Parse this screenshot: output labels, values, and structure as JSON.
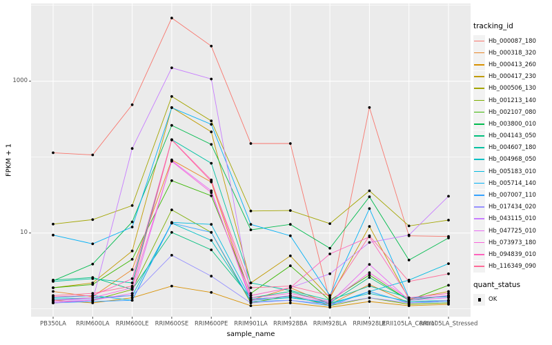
{
  "figure": {
    "background": "#FFFFFF",
    "panel_background": "#EBEBEB",
    "gridline_color": "#FFFFFF",
    "tick_color": "#333333",
    "tick_label_color": "#4D4D4D",
    "axis_title_color": "#000000",
    "point_color": "#000000"
  },
  "legend": {
    "tracking_title": "tracking_id",
    "quant_title": "quant_status",
    "quant_items": [
      {
        "label": "OK",
        "shape": "black-square"
      }
    ],
    "key_background": "#F2F2F2"
  },
  "chart_data": {
    "type": "line",
    "title": "",
    "xlabel": "sample_name",
    "ylabel": "FPKM + 1",
    "y_scale": "log10",
    "ylim": [
      0.9,
      9000
    ],
    "grid": "on",
    "legend_position": "right",
    "y_ticks": [
      {
        "value": 10,
        "label": "10"
      },
      {
        "value": 1000,
        "label": "1000"
      }
    ],
    "y_minor_gridlines": [
      1,
      100,
      10000
    ],
    "y_major_gridlines": [
      10,
      1000
    ],
    "categories": [
      "PB350LA",
      "RRIM600LA",
      "RRIM600LE",
      "RRIM600SE",
      "RRIM600PE",
      "RRIM901LA",
      "RRIM928BA",
      "RRIM928LA",
      "RRIM928LE",
      "RRII105LA_Control",
      "RRII105LA_Stressed"
    ],
    "series": [
      {
        "name": "Hb_000087_180",
        "color": "#F8766D",
        "values": [
          114,
          107,
          490,
          6800,
          2900,
          151,
          151,
          1.25,
          450,
          9.2,
          9.0
        ]
      },
      {
        "name": "Hb_000318_320",
        "color": "#E88526",
        "values": [
          1.7,
          1.45,
          3.3,
          92,
          47,
          1.3,
          1.9,
          1.15,
          2.1,
          1.2,
          1.3
        ]
      },
      {
        "name": "Hb_000413_260",
        "color": "#D89000",
        "values": [
          1.3,
          1.2,
          1.4,
          2.0,
          1.65,
          1.1,
          1.2,
          1.05,
          1.25,
          1.1,
          1.15
        ]
      },
      {
        "name": "Hb_000417_230",
        "color": "#C09B00",
        "values": [
          1.9,
          2.2,
          5.8,
          450,
          215,
          2.2,
          5.0,
          1.4,
          12.2,
          1.35,
          1.7
        ]
      },
      {
        "name": "Hb_000506_130",
        "color": "#A3A500",
        "values": [
          13.1,
          15,
          23,
          630,
          300,
          19.5,
          19.8,
          13.3,
          36,
          12.4,
          14.8
        ]
      },
      {
        "name": "Hb_001213_140",
        "color": "#7CAE00",
        "values": [
          1.2,
          1.3,
          1.8,
          20.2,
          10.2,
          1.2,
          1.5,
          1.1,
          1.4,
          1.15,
          1.2
        ]
      },
      {
        "name": "Hb_002107_080",
        "color": "#39B600",
        "values": [
          1.9,
          2.1,
          4.5,
          49,
          31,
          1.6,
          3.7,
          1.3,
          2.8,
          1.3,
          2.05
        ]
      },
      {
        "name": "Hb_003800_010",
        "color": "#00BB4E",
        "values": [
          2.35,
          3.9,
          14,
          262,
          147,
          11,
          13,
          6.3,
          30,
          4.4,
          8.6
        ]
      },
      {
        "name": "Hb_004143_050",
        "color": "#00BF7D",
        "values": [
          2.4,
          2.6,
          1.8,
          10.2,
          6.0,
          1.4,
          1.7,
          1.2,
          2.6,
          1.3,
          1.5
        ]
      },
      {
        "name": "Hb_004607_180",
        "color": "#00C1A3",
        "values": [
          2.3,
          2.5,
          2.2,
          170,
          83,
          2.2,
          1.75,
          1.3,
          2.0,
          1.4,
          1.45
        ]
      },
      {
        "name": "Hb_004968_050",
        "color": "#00BFC4",
        "values": [
          1.35,
          1.4,
          1.5,
          13.5,
          8.0,
          1.3,
          1.4,
          1.2,
          1.6,
          1.25,
          1.3
        ]
      },
      {
        "name": "Hb_005183_010",
        "color": "#00BAE0",
        "values": [
          1.4,
          1.5,
          1.3,
          13.8,
          13,
          1.35,
          1.45,
          1.15,
          1.7,
          2.4,
          3.95
        ]
      },
      {
        "name": "Hb_005714_140",
        "color": "#00B0F6",
        "values": [
          9.4,
          7.2,
          12,
          448,
          270,
          13,
          9.2,
          1.5,
          21,
          1.4,
          1.45
        ]
      },
      {
        "name": "Hb_007007_110",
        "color": "#35A2FF",
        "values": [
          1.2,
          1.25,
          1.3,
          13.5,
          10.2,
          1.25,
          1.3,
          1.1,
          1.7,
          1.2,
          1.25
        ]
      },
      {
        "name": "Hb_017434_020",
        "color": "#9590FF",
        "values": [
          1.3,
          1.35,
          1.5,
          5.1,
          2.7,
          1.2,
          1.3,
          1.15,
          1.4,
          1.2,
          1.3
        ]
      },
      {
        "name": "Hb_043115_010",
        "color": "#C77CFF",
        "values": [
          1.2,
          1.3,
          130,
          1500,
          1070,
          1.5,
          1.9,
          2.9,
          7.5,
          9.4,
          30.5
        ]
      },
      {
        "name": "Hb_047725_010",
        "color": "#E76BF3",
        "values": [
          1.25,
          1.3,
          1.6,
          90,
          36,
          1.3,
          1.5,
          1.2,
          3.85,
          1.3,
          1.4
        ]
      },
      {
        "name": "Hb_073973_180",
        "color": "#FA62DB",
        "values": [
          1.3,
          1.4,
          1.9,
          88,
          34,
          1.4,
          1.6,
          1.25,
          3.0,
          1.35,
          1.5
        ]
      },
      {
        "name": "Hb_094839_010",
        "color": "#FF62BC",
        "values": [
          1.45,
          1.5,
          2.5,
          170,
          50,
          1.5,
          1.9,
          5.3,
          8.9,
          1.4,
          1.6
        ]
      },
      {
        "name": "Hb_116349_090",
        "color": "#FF6A98",
        "values": [
          1.5,
          1.6,
          2.0,
          168,
          48,
          1.9,
          2.0,
          1.5,
          9.2,
          2.3,
          2.9
        ]
      }
    ]
  }
}
